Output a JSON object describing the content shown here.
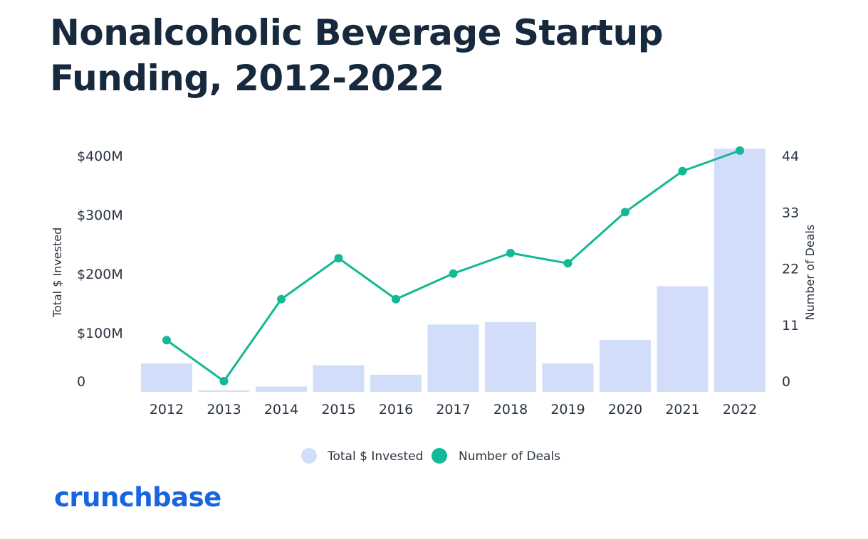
{
  "colors": {
    "bar": "#d2def9",
    "line": "#13b895",
    "title": "#17293d",
    "text": "#2a3440",
    "logo": "#1766e0"
  },
  "brand": {
    "logo_text": "crunchbase"
  },
  "chart_data": {
    "type": "bar",
    "title": "Nonalcoholic Beverage Startup Funding, 2012-2022",
    "categories": [
      "2012",
      "2013",
      "2014",
      "2015",
      "2016",
      "2017",
      "2018",
      "2019",
      "2020",
      "2021",
      "2022"
    ],
    "series": [
      {
        "name": "Total $ Invested",
        "type": "bar",
        "axis": "left",
        "values": [
          48,
          2,
          9,
          45,
          29,
          114,
          118,
          48,
          88,
          179,
          412
        ]
      },
      {
        "name": "Number of Deals",
        "type": "line",
        "axis": "right",
        "values": [
          8,
          0,
          16,
          24,
          16,
          21,
          25,
          23,
          33,
          41,
          45
        ]
      }
    ],
    "y_left": {
      "label": "Total $ Invested",
      "ylim": [
        0,
        400
      ],
      "ticks": [
        0,
        100,
        200,
        300,
        400
      ],
      "tick_labels": [
        "0",
        "$100M",
        "$200M",
        "$300M",
        "$400M"
      ]
    },
    "y_right": {
      "label": "Number of Deals",
      "ylim": [
        0,
        44
      ],
      "ticks": [
        0,
        11,
        22,
        33,
        44
      ],
      "tick_labels": [
        "0",
        "11",
        "22",
        "33",
        "44"
      ]
    },
    "legend": {
      "position": "bottom",
      "entries": [
        "Total $ Invested",
        "Number of Deals"
      ]
    }
  }
}
